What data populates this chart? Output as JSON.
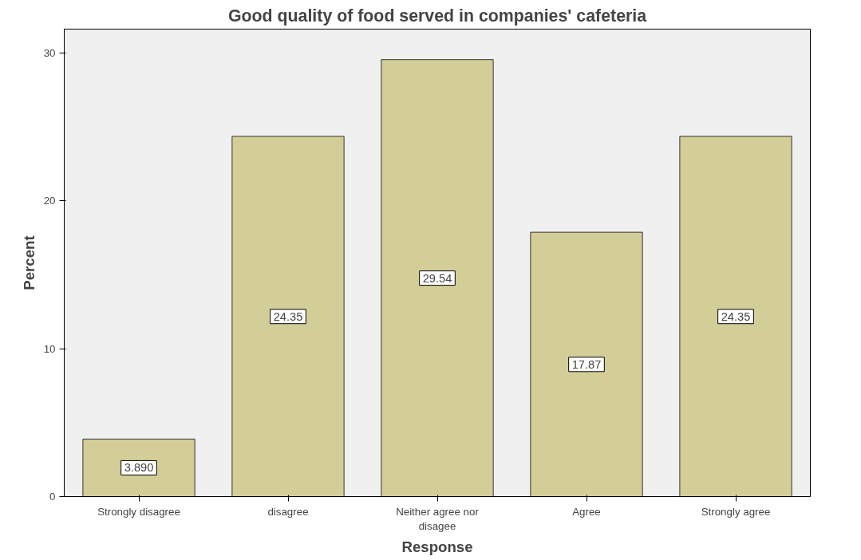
{
  "chart_data": {
    "type": "bar",
    "title": "Good quality of food served in companies' cafeteria",
    "xlabel": "Response",
    "ylabel": "Percent",
    "categories": [
      "Strongly disagree",
      "disagree",
      "Neither agree nor\ndisagee",
      "Agree",
      "Strongly agree"
    ],
    "values": [
      3.89,
      24.35,
      29.54,
      17.87,
      24.35
    ],
    "value_labels": [
      "3.890",
      "24.35",
      "29.54",
      "17.87",
      "24.35"
    ],
    "color": "#d3ce97",
    "ylim": [
      0,
      31.6
    ],
    "yticks": [
      0,
      10,
      20,
      30
    ],
    "grid": false
  }
}
